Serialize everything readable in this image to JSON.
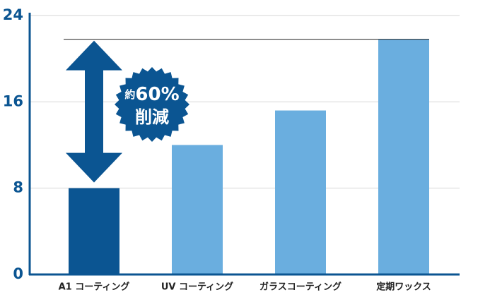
{
  "chart_data": {
    "type": "bar",
    "categories": [
      "A1 コーティング",
      "UV コーティング",
      "ガラスコーティング",
      "定期ワックス"
    ],
    "values": [
      8,
      12,
      15.2,
      21.8
    ],
    "colors": [
      "#0b5592",
      "#6aaedf",
      "#6aaedf",
      "#6aaedf"
    ],
    "ylim": [
      0,
      24
    ],
    "yticks": [
      0,
      8,
      16,
      24
    ],
    "grid": true,
    "annotation": [
      "約",
      "60%",
      "削減"
    ]
  }
}
